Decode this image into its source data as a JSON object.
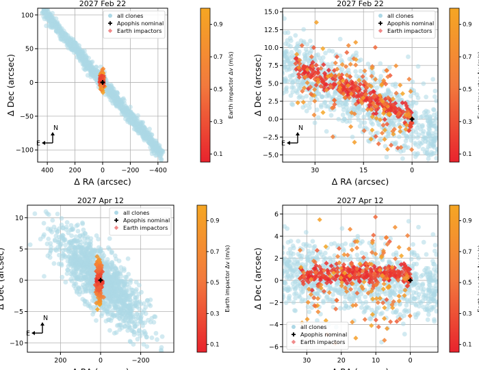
{
  "legend_labels": {
    "clones": "all clones",
    "nominal": "Apophis nominal",
    "impactors": "Earth impactors"
  },
  "colors": {
    "clone": "#add8e6",
    "nominal": "#000000",
    "grid": "#b0b0b0",
    "cmap_low": "#e8232d",
    "cmap_mid": "#f27a3d",
    "cmap_high": "#f5a623"
  },
  "colorbar": {
    "label": "Earth impactor Δv (m/s)",
    "ticks": [
      "0.1",
      "0.3",
      "0.5",
      "0.7",
      "0.9"
    ],
    "range": [
      0.05,
      1.0
    ]
  },
  "compass": {
    "north": "N",
    "east": "E"
  },
  "chart_data": [
    {
      "type": "scatter",
      "title": "2027 Feb 22",
      "xlabel": "Δ RA (arcsec)",
      "ylabel": "Δ Dec (arcsec)",
      "xlim": [
        470,
        -470
      ],
      "ylim": [
        -118,
        110
      ],
      "xticks": [
        400,
        200,
        0,
        -200,
        -400
      ],
      "yticks": [
        100,
        50,
        0,
        -50,
        -100
      ],
      "xtick_labels": [
        "400",
        "200",
        "0",
        "−200",
        "−400"
      ],
      "ytick_labels": [
        "100",
        "50",
        "0",
        "−50",
        "−100"
      ],
      "legend_position": "upper right",
      "clone_shape": {
        "center": [
          0,
          0
        ],
        "major_axis_end": [
          -400,
          -100
        ],
        "minor_halfwidth": 5
      },
      "impactor_cluster": {
        "x_range": [
          -8,
          20
        ],
        "y_range": [
          -12,
          18
        ]
      },
      "nominal": [
        0,
        0
      ]
    },
    {
      "type": "scatter",
      "title": "2027 Feb 22",
      "xlabel": "Δ RA (arcsec)",
      "ylabel": "Δ Dec (arcsec)",
      "xlim": [
        40,
        -8
      ],
      "ylim": [
        -6,
        15.5
      ],
      "xticks": [
        30,
        15,
        0
      ],
      "yticks": [
        15.0,
        12.5,
        10.0,
        7.5,
        5.0,
        2.5,
        0.0,
        -2.5,
        -5.0
      ],
      "xtick_labels": [
        "30",
        "15",
        "0"
      ],
      "ytick_labels": [
        "15.0",
        "12.5",
        "10.0",
        "7.5",
        "5.0",
        "2.5",
        "0.0",
        "−2.5",
        "−5.0"
      ],
      "legend_position": "upper right",
      "clone_shape": {
        "slope": 0.21,
        "spread": 2.5
      },
      "impactor_trend": {
        "x_range": [
          0,
          36
        ],
        "slope": 0.21,
        "core_spread": 0.8,
        "outer_spread": 3.5
      },
      "nominal": [
        0,
        0
      ]
    },
    {
      "type": "scatter",
      "title": "2027 Apr 12",
      "xlabel": "Δ RA (arcsec)",
      "ylabel": "Δ Dec (arcsec)",
      "xlim": [
        365,
        -365
      ],
      "ylim": [
        -11.5,
        12
      ],
      "xticks": [
        200,
        0,
        -200
      ],
      "yticks": [
        10,
        5,
        0,
        -5,
        -10
      ],
      "xtick_labels": [
        "200",
        "0",
        "−200"
      ],
      "ytick_labels": [
        "10",
        "5",
        "0",
        "−5",
        "−10"
      ],
      "legend_position": "upper right",
      "clone_shape": {
        "slope": 0.028,
        "spread": 2.3
      },
      "impactor_cluster": {
        "x_range": [
          -12,
          30
        ],
        "y_range": [
          -5,
          6
        ]
      },
      "nominal": [
        0,
        0
      ]
    },
    {
      "type": "scatter",
      "title": "2027 Apr 12",
      "xlabel": "Δ RA (arcsec)",
      "ylabel": "Δ Dec (arcsec)",
      "xlim": [
        37,
        -8
      ],
      "ylim": [
        -6.5,
        6.8
      ],
      "xticks": [
        30,
        20,
        10,
        0
      ],
      "yticks": [
        6,
        4,
        2,
        0,
        -2,
        -4,
        -6
      ],
      "xtick_labels": [
        "30",
        "20",
        "10",
        "0"
      ],
      "ytick_labels": [
        "6",
        "4",
        "2",
        "0",
        "−2",
        "−4",
        "−6"
      ],
      "legend_position": "lower left",
      "clone_shape": {
        "slope": 0.03,
        "spread": 1.6
      },
      "impactor_band": {
        "x_range": [
          0,
          32
        ],
        "core_center": 0.5,
        "core_spread": 0.5,
        "outer_spread": 2.5
      },
      "nominal": [
        0,
        0
      ]
    }
  ]
}
